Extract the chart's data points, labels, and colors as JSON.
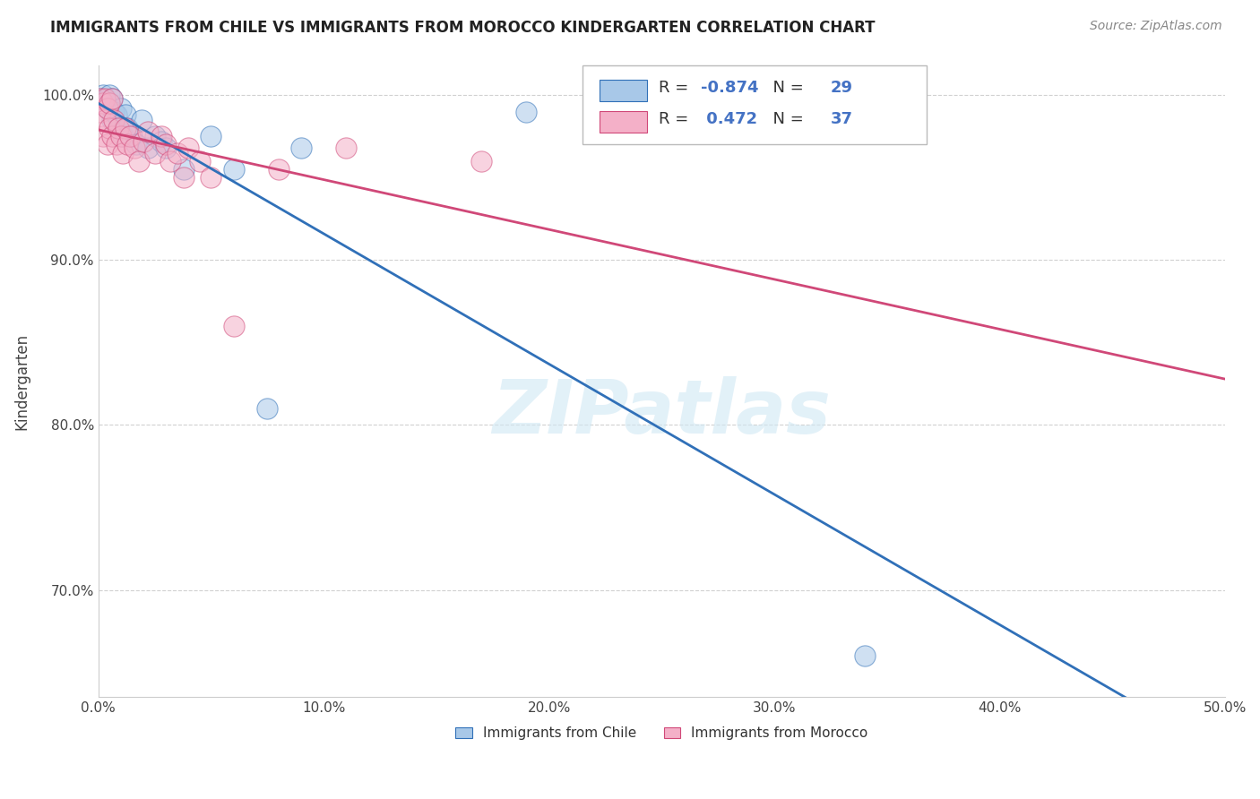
{
  "title": "IMMIGRANTS FROM CHILE VS IMMIGRANTS FROM MOROCCO KINDERGARTEN CORRELATION CHART",
  "source": "Source: ZipAtlas.com",
  "ylabel": "Kindergarten",
  "xlabel_chile": "Immigrants from Chile",
  "xlabel_morocco": "Immigrants from Morocco",
  "legend_chile_R": "-0.874",
  "legend_chile_N": "29",
  "legend_morocco_R": "0.472",
  "legend_morocco_N": "37",
  "chile_color": "#a8c8e8",
  "morocco_color": "#f4b0c8",
  "chile_line_color": "#3070b8",
  "morocco_line_color": "#d04878",
  "watermark": "ZIPatlas",
  "xlim": [
    0.0,
    0.5
  ],
  "ylim": [
    0.635,
    1.018
  ],
  "yticks": [
    0.7,
    0.8,
    0.9,
    1.0
  ],
  "ytick_labels": [
    "70.0%",
    "80.0%",
    "90.0%",
    "100.0%"
  ],
  "xticks": [
    0.0,
    0.1,
    0.2,
    0.3,
    0.4,
    0.5
  ],
  "xtick_labels": [
    "0.0%",
    "10.0%",
    "20.0%",
    "30.0%",
    "40.0%",
    "50.0%"
  ],
  "chile_x": [
    0.001,
    0.002,
    0.003,
    0.004,
    0.005,
    0.005,
    0.006,
    0.006,
    0.007,
    0.008,
    0.009,
    0.01,
    0.011,
    0.012,
    0.013,
    0.015,
    0.017,
    0.019,
    0.022,
    0.025,
    0.028,
    0.03,
    0.038,
    0.05,
    0.06,
    0.075,
    0.09,
    0.19,
    0.34
  ],
  "chile_y": [
    0.998,
    1.0,
    0.997,
    0.992,
    1.0,
    0.995,
    0.985,
    0.998,
    0.99,
    0.988,
    0.98,
    0.992,
    0.975,
    0.988,
    0.98,
    0.975,
    0.97,
    0.985,
    0.968,
    0.975,
    0.972,
    0.968,
    0.955,
    0.975,
    0.955,
    0.81,
    0.968,
    0.99,
    0.66
  ],
  "morocco_x": [
    0.001,
    0.001,
    0.002,
    0.002,
    0.003,
    0.003,
    0.004,
    0.004,
    0.005,
    0.005,
    0.006,
    0.006,
    0.007,
    0.008,
    0.009,
    0.01,
    0.011,
    0.012,
    0.013,
    0.014,
    0.016,
    0.018,
    0.02,
    0.022,
    0.025,
    0.028,
    0.03,
    0.032,
    0.035,
    0.038,
    0.04,
    0.045,
    0.05,
    0.06,
    0.08,
    0.11,
    0.17
  ],
  "morocco_y": [
    0.99,
    0.998,
    0.975,
    0.995,
    0.985,
    0.998,
    0.97,
    0.992,
    0.98,
    0.995,
    0.975,
    0.998,
    0.985,
    0.97,
    0.98,
    0.975,
    0.965,
    0.98,
    0.97,
    0.975,
    0.968,
    0.96,
    0.972,
    0.978,
    0.965,
    0.975,
    0.97,
    0.96,
    0.965,
    0.95,
    0.968,
    0.96,
    0.95,
    0.86,
    0.955,
    0.968,
    0.96
  ],
  "chile_trend_x": [
    0.0,
    0.5
  ],
  "morocco_trend_x": [
    0.0,
    0.5
  ]
}
